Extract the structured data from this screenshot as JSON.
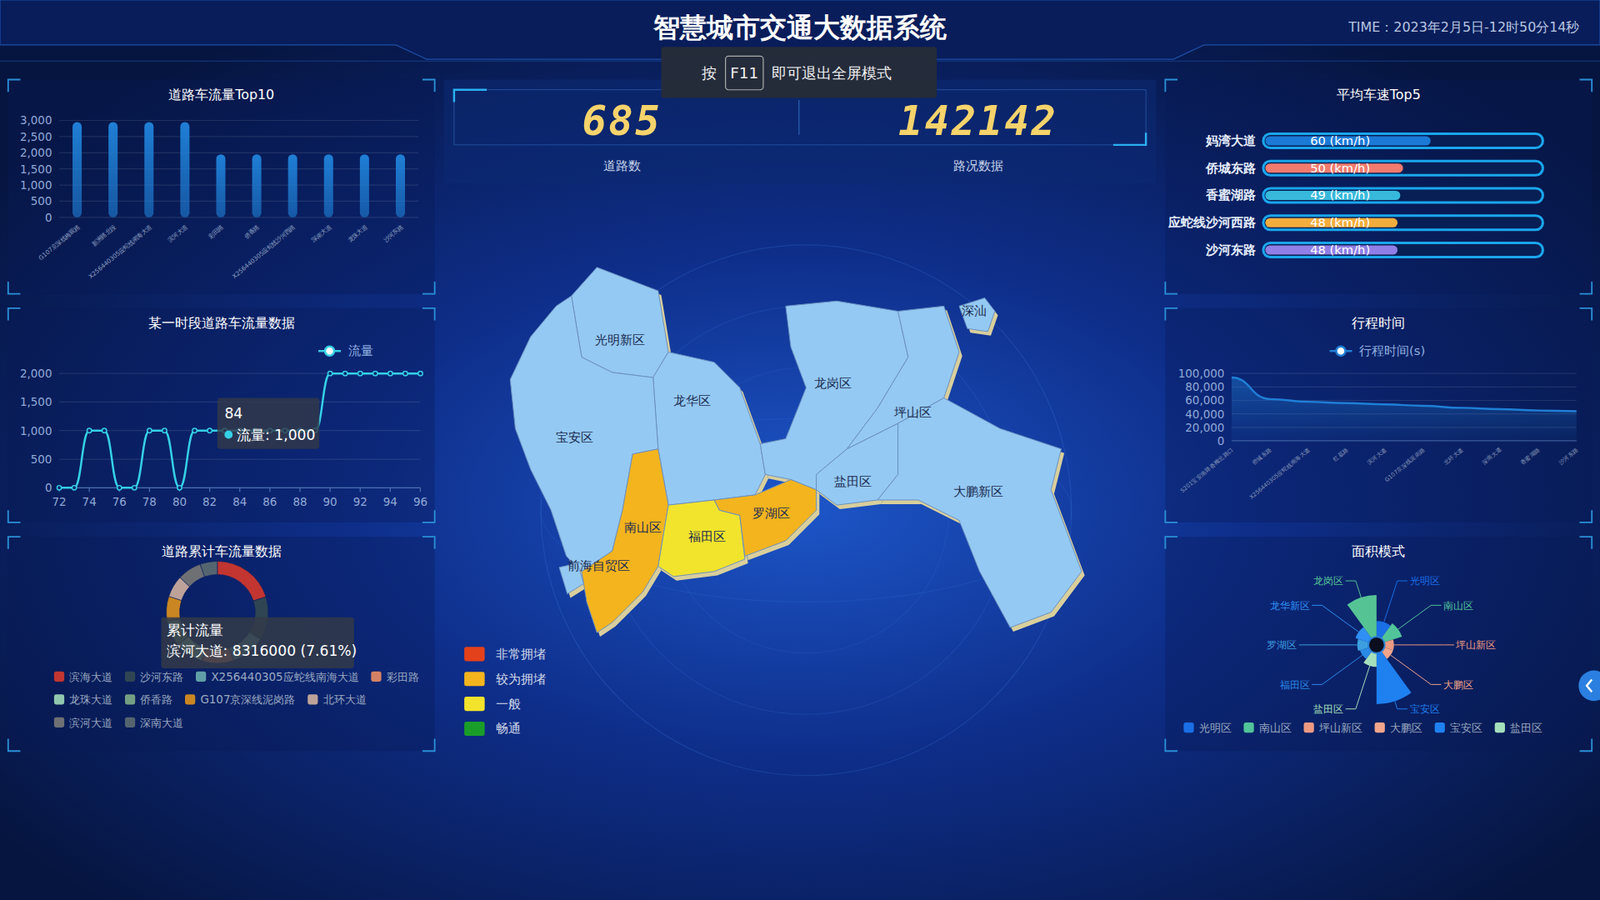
{
  "header": {
    "title": "智慧城市交通大数据系统",
    "time": "TIME：2023年2月5日-12时50分14秒",
    "fullscreen_hint": {
      "before": "按",
      "key": "F11",
      "after": "即可退出全屏模式"
    }
  },
  "stats": [
    {
      "value": 685,
      "label": "道路数"
    },
    {
      "value": 142142,
      "label": "路况数据"
    }
  ],
  "map": {
    "legend": [
      {
        "label": "非常拥堵",
        "color": "#e3411c"
      },
      {
        "label": "较为拥堵",
        "color": "#f4b41e"
      },
      {
        "label": "一般",
        "color": "#f2e42c"
      },
      {
        "label": "畅通",
        "color": "#1a9e2a"
      }
    ],
    "districts": [
      {
        "name": "光明新区",
        "status": null
      },
      {
        "name": "龙华区",
        "status": null
      },
      {
        "name": "宝安区",
        "status": null
      },
      {
        "name": "龙岗区",
        "status": null
      },
      {
        "name": "坪山区",
        "status": null
      },
      {
        "name": "盐田区",
        "status": null
      },
      {
        "name": "大鹏新区",
        "status": null
      },
      {
        "name": "南山区",
        "status": "较为拥堵"
      },
      {
        "name": "福田区",
        "status": "一般"
      },
      {
        "name": "罗湖区",
        "status": "较为拥堵"
      },
      {
        "name": "前海自贸区",
        "status": null
      },
      {
        "name": "深汕",
        "status": null
      }
    ]
  },
  "chart_data": [
    {
      "type": "bar",
      "title": "道路车流量Top10",
      "categories": [
        "G107京深线梅观路",
        "新洲路北段",
        "X256440305应蛇线南海大道",
        "滨河大道",
        "彩田路",
        "侨香路",
        "X256440305应蛇线沙河西路",
        "深南大道",
        "龙珠大道",
        "沙河东路"
      ],
      "values": [
        2950,
        2950,
        2950,
        2950,
        1950,
        1950,
        1950,
        1950,
        1950,
        1950
      ],
      "color": "#1f7fd6",
      "ylim": [
        0,
        3000
      ],
      "yticks": [
        0,
        500,
        {
          "value": 1000,
          "label": "1,000"
        },
        {
          "value": 1500,
          "label": "1,500"
        },
        {
          "value": 2000,
          "label": "2,000"
        },
        {
          "value": 2500,
          "label": "2,500"
        },
        {
          "value": 3000,
          "label": "3,000"
        }
      ],
      "grid": true
    },
    {
      "type": "line",
      "title": "某一时段道路车流量数据",
      "x": [
        72,
        73,
        74,
        75,
        76,
        77,
        78,
        79,
        80,
        81,
        82,
        83,
        84,
        85,
        86,
        87,
        88,
        89,
        90,
        91,
        92,
        93,
        94,
        95,
        96
      ],
      "series": [
        {
          "name": "流量",
          "color": "#35d0e6",
          "marker": "circle",
          "values": [
            0,
            0,
            1000,
            1000,
            0,
            0,
            1000,
            1000,
            0,
            1000,
            1000,
            1000,
            1000,
            1000,
            1000,
            1000,
            1000,
            1000,
            2000,
            2000,
            2000,
            2000,
            2000,
            2000,
            2000
          ]
        }
      ],
      "xlim": [
        72,
        96
      ],
      "xticks": [
        72,
        74,
        76,
        78,
        80,
        82,
        84,
        86,
        88,
        90,
        92,
        94,
        96
      ],
      "ylim": [
        0,
        2000
      ],
      "yticks": [
        0,
        500,
        {
          "value": 1000,
          "label": "1,000"
        },
        {
          "value": 1500,
          "label": "1,500"
        },
        {
          "value": 2000,
          "label": "2,000"
        }
      ],
      "grid": true,
      "legend": "top-right",
      "annotations": [
        {
          "x": 84,
          "title": "84",
          "text": "流量: 1,000"
        }
      ]
    },
    {
      "type": "donut",
      "title": "道路累计车流量数据",
      "categories": [
        "滨海大道",
        "沙河东路",
        "X256440305应蛇线南海大道",
        "彩田路",
        "龙珠大道",
        "侨香路",
        "G107京深线泥岗路",
        "北环大道",
        "滨河大道",
        "深南大道"
      ],
      "values": [
        22000000,
        15000000,
        12000000,
        11000000,
        10000000,
        9000000,
        8500000,
        7500000,
        8316000,
        5984000
      ],
      "colors": [
        "#c23531",
        "#2f4554",
        "#61a0a8",
        "#d48265",
        "#91c7ae",
        "#749f83",
        "#ca8622",
        "#bda29a",
        "#6e7074",
        "#546570"
      ],
      "legend": "bottom",
      "annotations": [
        {
          "title": "累计流量",
          "text": "滨河大道: 8316000 (7.61%)"
        }
      ]
    },
    {
      "type": "bar",
      "orientation": "horizontal",
      "title": "平均车速Top5",
      "categories": [
        "妈湾大道",
        "侨城东路",
        "香蜜湖路",
        "应蛇线沙河西路",
        "沙河东路"
      ],
      "values": [
        60,
        50,
        49,
        48,
        48
      ],
      "value_labels": [
        "60  (km/h)",
        "50  (km/h)",
        "49  (km/h)",
        "48  (km/h)",
        "48  (km/h)"
      ],
      "colors": [
        "#1a7ad6",
        "#f07b6e",
        "#37b9dc",
        "#f3ad3c",
        "#8f7fe6"
      ],
      "xlim": [
        0,
        100
      ],
      "data_labels": true,
      "tick_labels": "y"
    },
    {
      "type": "line",
      "title": "行程时间",
      "categories": [
        "S201宝安南路香梅北路口",
        "侨城东路",
        "X256440305应蛇线南海大道",
        "红荔路",
        "滨河大道",
        "G107京深线泥岗路",
        "北环大道",
        "深南大道",
        "香蜜湖路",
        "沙河东路"
      ],
      "series": [
        {
          "name": "行程时间(s)",
          "color": "#1f7fd6",
          "values": [
            94000,
            62000,
            58000,
            56000,
            54000,
            52000,
            49000,
            47000,
            45000,
            44000
          ]
        }
      ],
      "ylim": [
        0,
        100000
      ],
      "yticks": [
        0,
        {
          "value": 20000,
          "label": "20,000"
        },
        {
          "value": 40000,
          "label": "40,000"
        },
        {
          "value": 60000,
          "label": "60,000"
        },
        {
          "value": 80000,
          "label": "80,000"
        },
        {
          "value": 100000,
          "label": "100,000"
        }
      ],
      "grid": true,
      "legend": "top"
    },
    {
      "type": "rose",
      "title": "面积模式",
      "categories": [
        "光明区",
        "南山区",
        "坪山新区",
        "大鹏区",
        "宝安区",
        "盐田区",
        "福田区",
        "罗湖区",
        "龙华新区",
        "龙岗区"
      ],
      "values": [
        17,
        20,
        10,
        10,
        55,
        15,
        10,
        12,
        15,
        45
      ],
      "colors": [
        "#1a6fe6",
        "#52c49a",
        "#ee9a82",
        "#f2a58a",
        "#1f80f0",
        "#a5e0bc",
        "#2a8ae8",
        "#3d9fe0",
        "#2f8ff5",
        "#56c395"
      ],
      "legend": "bottom",
      "legend_entries": [
        "光明区",
        "南山区",
        "坪山新区",
        "大鹏区",
        "宝安区",
        "盐田区"
      ]
    }
  ]
}
